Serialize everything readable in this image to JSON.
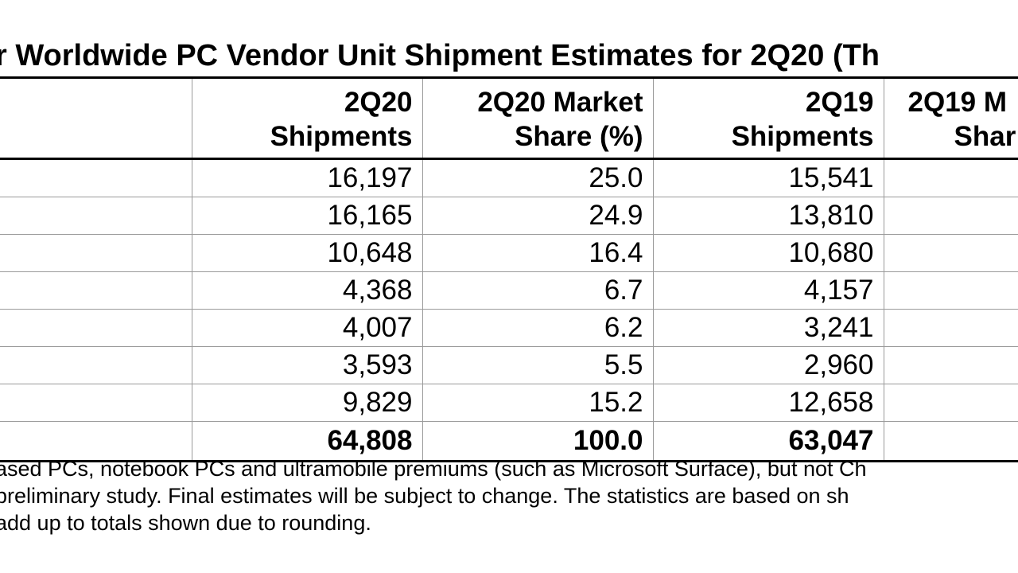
{
  "title": "r Worldwide PC Vendor Unit Shipment Estimates for 2Q20 (Th",
  "headers": [
    {
      "line1": "",
      "line2": ""
    },
    {
      "line1": "2Q20",
      "line2": "Shipments"
    },
    {
      "line1": "2Q20 Market",
      "line2": "Share (%)"
    },
    {
      "line1": "2Q19",
      "line2": "Shipments"
    },
    {
      "line1": "2Q19 M",
      "line2": "Shar"
    }
  ],
  "rows": [
    {
      "vendor": "",
      "s20": "16,197",
      "m20": "25.0",
      "s19": "15,541",
      "m19": ""
    },
    {
      "vendor": "",
      "s20": "16,165",
      "m20": "24.9",
      "s19": "13,810",
      "m19": ""
    },
    {
      "vendor": "",
      "s20": "10,648",
      "m20": "16.4",
      "s19": "10,680",
      "m19": ""
    },
    {
      "vendor": "",
      "s20": "4,368",
      "m20": "6.7",
      "s19": "4,157",
      "m19": ""
    },
    {
      "vendor": "",
      "s20": "4,007",
      "m20": "6.2",
      "s19": "3,241",
      "m19": ""
    },
    {
      "vendor": "",
      "s20": "3,593",
      "m20": "5.5",
      "s19": "2,960",
      "m19": ""
    },
    {
      "vendor": "",
      "s20": "9,829",
      "m20": "15.2",
      "s19": "12,658",
      "m19": ""
    },
    {
      "vendor": "",
      "s20": "64,808",
      "m20": "100.0",
      "s19": "63,047",
      "m19": ""
    }
  ],
  "notes": [
    "ased PCs, notebook PCs and ultramobile premiums (such as Microsoft Surface), but not Ch",
    " preliminary study. Final estimates will be subject to change. The statistics are based on sh",
    "add up to totals shown due to rounding."
  ]
}
